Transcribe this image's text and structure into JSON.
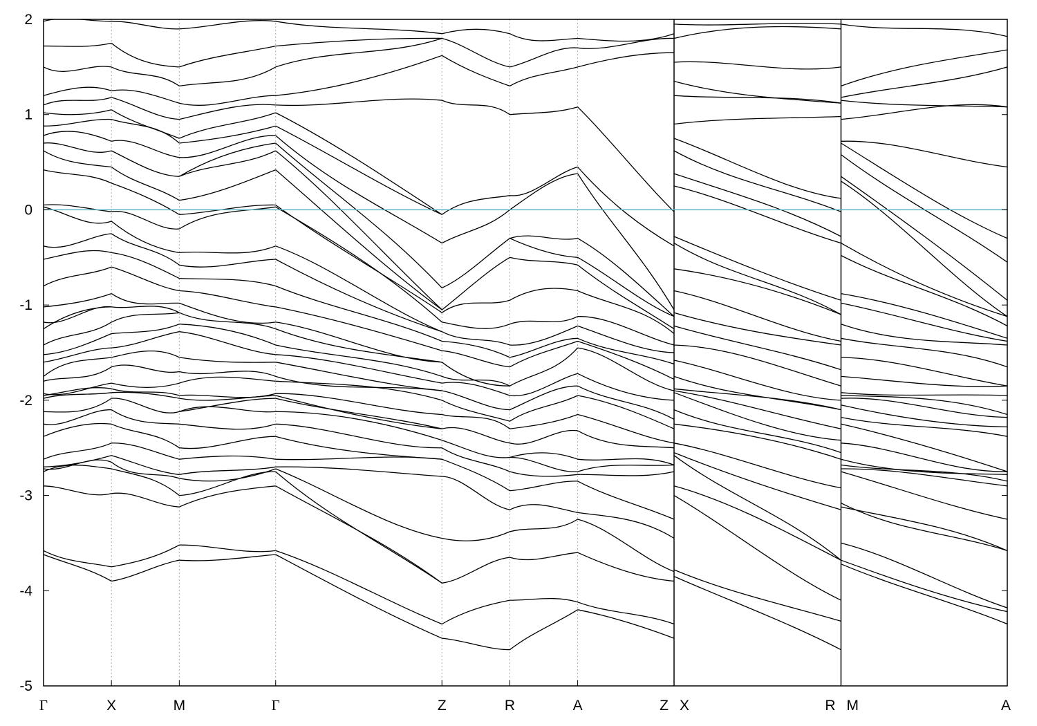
{
  "chart_data": {
    "type": "line",
    "title": "",
    "xlabel": "",
    "ylabel": "",
    "ylim": [
      -5,
      2
    ],
    "y_ticks": [
      "2",
      "1",
      "0",
      "-1",
      "-2",
      "-3",
      "-4",
      "-5"
    ],
    "grid": "vertical dotted lines at high-symmetry points",
    "fermi_level": 0,
    "fermi_color": "#5fb4c6",
    "band_color": "#000000",
    "x_scale": {
      "units": "path coordinate",
      "min": 0,
      "max": 14.2
    },
    "kpoints": [
      {
        "label": "Γ",
        "x": 0.0
      },
      {
        "label": "X",
        "x": 1.0
      },
      {
        "label": "M",
        "x": 2.0
      },
      {
        "label": "Γ",
        "x": 3.42
      },
      {
        "label": "Z",
        "x": 5.87
      },
      {
        "label": "R",
        "x": 6.87
      },
      {
        "label": "A",
        "x": 7.87
      },
      {
        "label": "Z",
        "x": 9.29
      },
      {
        "label": "X",
        "x": 9.29
      },
      {
        "label": "R",
        "x": 11.75
      },
      {
        "label": "M",
        "x": 11.75
      },
      {
        "label": "A",
        "x": 14.2
      }
    ],
    "segments": [
      {
        "from": "Γ",
        "to": "X",
        "x0": 0.0,
        "x1": 1.0
      },
      {
        "from": "X",
        "to": "M",
        "x0": 1.0,
        "x1": 2.0
      },
      {
        "from": "M",
        "to": "Γ",
        "x0": 2.0,
        "x1": 3.42
      },
      {
        "from": "Γ",
        "to": "Z",
        "x0": 3.42,
        "x1": 5.87
      },
      {
        "from": "Z",
        "to": "R",
        "x0": 5.87,
        "x1": 6.87
      },
      {
        "from": "R",
        "to": "A",
        "x0": 6.87,
        "x1": 7.87
      },
      {
        "from": "A",
        "to": "Z",
        "x0": 7.87,
        "x1": 9.29
      },
      {
        "from": "X",
        "to": "R",
        "x0": 9.29,
        "x1": 11.75
      },
      {
        "from": "M",
        "to": "A",
        "x0": 11.75,
        "x1": 14.2
      }
    ],
    "band_energies_at_kpoints": {
      "Γ": [
        -3.62,
        -3.58,
        -2.9,
        -2.75,
        -2.72,
        -2.7,
        -2.62,
        -2.38,
        -2.25,
        -2.12,
        -1.98,
        -1.95,
        -1.93,
        -1.8,
        -1.75,
        -1.6,
        -1.52,
        -1.42,
        -1.25,
        -1.18,
        -1.02,
        -0.8,
        -0.52,
        -0.38,
        0.03,
        0.05,
        0.42,
        0.62,
        0.7,
        0.78,
        0.88,
        1.02,
        1.1,
        1.2,
        1.5,
        1.72,
        1.98
      ],
      "X": [
        -3.9,
        -3.75,
        -2.98,
        -2.72,
        -2.65,
        -2.58,
        -2.45,
        -2.25,
        -2.1,
        -1.98,
        -1.92,
        -1.88,
        -1.82,
        -1.65,
        -1.55,
        -1.45,
        -1.3,
        -1.18,
        -1.02,
        -0.88,
        -0.6,
        -0.45,
        -0.25,
        -0.12,
        -0.02,
        0.28,
        0.45,
        0.62,
        0.72,
        0.95,
        1.05,
        1.18,
        1.25,
        1.5,
        1.75,
        1.98
      ],
      "M": [
        -3.68,
        -3.52,
        -3.12,
        -3.0,
        -2.82,
        -2.78,
        -2.62,
        -2.5,
        -2.25,
        -2.12,
        -1.98,
        -1.95,
        -1.82,
        -1.7,
        -1.55,
        -1.28,
        -1.2,
        -1.08,
        -0.98,
        -0.85,
        -0.72,
        -0.58,
        -0.45,
        -0.2,
        -0.05,
        0.1,
        0.35,
        0.55,
        0.7,
        0.75,
        0.95,
        1.12,
        1.3,
        1.5,
        1.9
      ],
      "Z": [
        -4.5,
        -4.35,
        -3.92,
        -3.45,
        -2.8,
        -2.62,
        -2.5,
        -2.42,
        -2.3,
        -2.15,
        -2.0,
        -1.9,
        -1.82,
        -1.75,
        -1.6,
        -1.48,
        -1.38,
        -1.28,
        -1.18,
        -1.08,
        -1.05,
        -0.82,
        -0.35,
        -0.05,
        1.15,
        1.62,
        1.8,
        1.85
      ],
      "R": [
        -4.62,
        -4.1,
        -3.65,
        -3.38,
        -3.15,
        -2.95,
        -2.75,
        -2.6,
        -2.45,
        -2.3,
        -2.22,
        -2.1,
        -1.95,
        -1.85,
        -1.65,
        -1.55,
        -1.42,
        -1.2,
        -0.95,
        -0.5,
        -0.3,
        0.0,
        0.15,
        1.0,
        1.3,
        1.5,
        1.85
      ],
      "A": [
        -4.2,
        -4.12,
        -3.6,
        -3.25,
        -3.18,
        -2.85,
        -2.78,
        -2.75,
        -2.62,
        -2.32,
        -2.15,
        -1.95,
        -1.85,
        -1.72,
        -1.45,
        -1.38,
        -1.35,
        -1.22,
        -1.12,
        -0.85,
        -0.58,
        -0.5,
        -0.3,
        0.38,
        0.45,
        1.08,
        1.5,
        1.7,
        1.8
      ],
      "Z_right": [
        -4.5,
        -4.35,
        -3.9,
        -3.8,
        -3.45,
        -3.25,
        -2.75,
        -2.68,
        -2.5,
        -2.45,
        -2.3,
        -2.2,
        -2.0,
        -1.9,
        -1.78,
        -1.62,
        -1.5,
        -1.42,
        -1.3,
        -1.25,
        -1.12,
        -1.05,
        -0.38,
        -0.02,
        1.65,
        1.8,
        1.85
      ],
      "X_right": [
        -3.85,
        -3.78,
        -3.0,
        -2.9,
        -2.58,
        -2.55,
        -2.45,
        -2.25,
        -2.1,
        -1.92,
        -1.9,
        -1.88,
        -1.75,
        -1.58,
        -1.42,
        -1.22,
        -1.08,
        -0.85,
        -0.62,
        -0.35,
        -0.28,
        0.25,
        0.38,
        0.62,
        0.75,
        0.9,
        1.2,
        1.35,
        1.55,
        1.8,
        1.95
      ],
      "R_right": [
        -4.62,
        -4.32,
        -4.1,
        -3.68,
        -3.15,
        -2.92,
        -2.62,
        -2.55,
        -2.42,
        -2.3,
        -2.1,
        -2.0,
        -1.85,
        -1.68,
        -1.42,
        -1.38,
        -1.1,
        -0.95,
        -0.35,
        -0.28,
        -0.02,
        0.12,
        0.98,
        1.12,
        1.5,
        1.9,
        1.95
      ],
      "M_right": [
        -3.72,
        -3.68,
        -3.5,
        -3.12,
        -3.08,
        -2.75,
        -2.72,
        -2.68,
        -2.62,
        -2.45,
        -2.25,
        -2.18,
        -2.05,
        -1.98,
        -1.95,
        -1.92,
        -1.75,
        -1.55,
        -1.35,
        -1.2,
        -0.98,
        -0.88,
        -0.48,
        -0.35,
        0.3,
        0.35,
        0.58,
        0.7,
        0.72,
        0.95,
        1.15,
        1.18,
        1.3,
        1.95
      ],
      "A_right": [
        -4.35,
        -4.22,
        -4.18,
        -3.58,
        -3.25,
        -2.9,
        -2.85,
        -2.78,
        -2.75,
        -2.38,
        -2.28,
        -2.18,
        -2.15,
        -1.95,
        -1.85,
        -1.65,
        -1.42,
        -1.38,
        -1.35,
        -1.22,
        -1.12,
        -0.95,
        -0.55,
        -0.3,
        0.45,
        1.08,
        1.5,
        1.68,
        1.82
      ]
    }
  }
}
